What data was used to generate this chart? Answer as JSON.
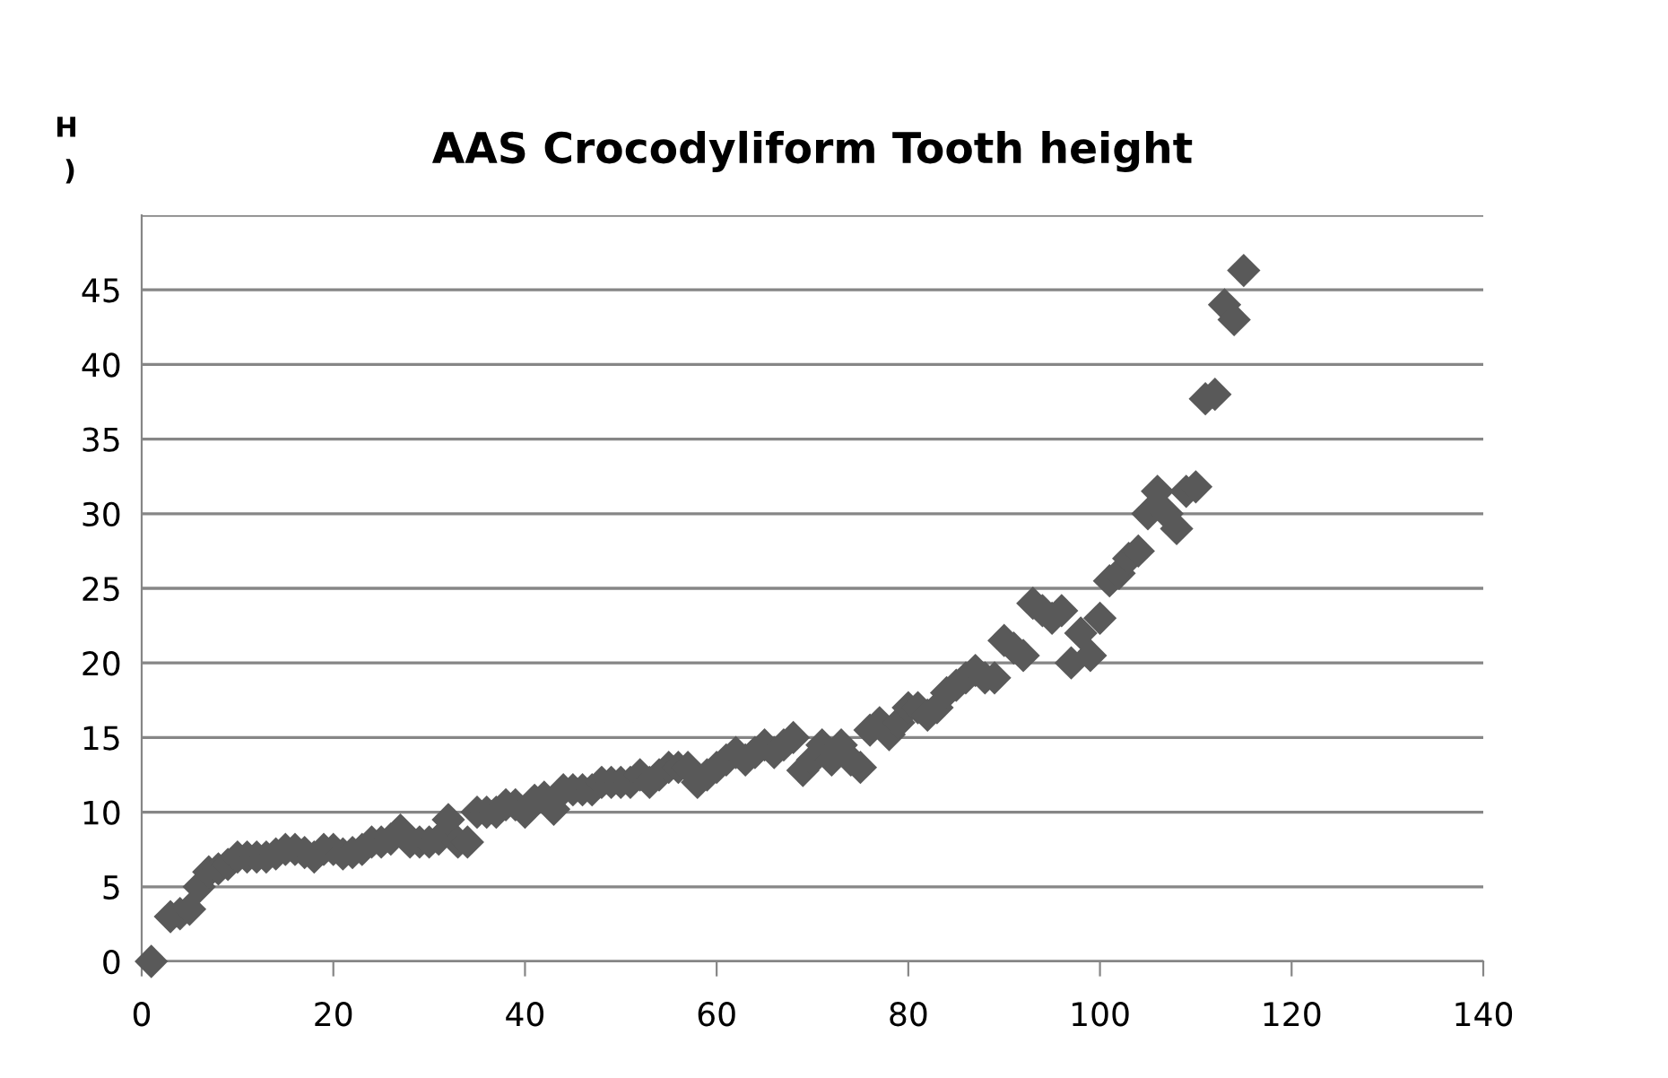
{
  "chart_data": {
    "type": "scatter",
    "title": "AAS Crocodyliform Tooth height",
    "annotations": [
      "H",
      ")"
    ],
    "x": [
      1,
      3,
      4,
      5,
      6,
      7,
      8,
      9,
      10,
      11,
      12,
      13,
      14,
      15,
      16,
      17,
      18,
      19,
      20,
      21,
      22,
      23,
      24,
      25,
      26,
      27,
      28,
      29,
      30,
      31,
      32,
      33,
      34,
      35,
      36,
      37,
      38,
      39,
      40,
      41,
      42,
      43,
      44,
      45,
      46,
      47,
      48,
      49,
      50,
      51,
      52,
      53,
      54,
      55,
      56,
      57,
      58,
      59,
      60,
      61,
      62,
      63,
      64,
      65,
      66,
      67,
      68,
      69,
      70,
      71,
      72,
      73,
      74,
      75,
      76,
      77,
      78,
      79,
      80,
      81,
      82,
      83,
      84,
      85,
      86,
      87,
      88,
      89,
      90,
      91,
      92,
      93,
      94,
      95,
      96,
      97,
      98,
      99,
      100,
      101,
      102,
      103,
      104,
      105,
      106,
      107,
      108,
      109,
      110,
      111,
      112,
      113,
      114,
      115
    ],
    "series": [
      {
        "color": "#595959",
        "values": [
          0,
          3,
          3.2,
          3.5,
          5,
          6,
          6.2,
          6.5,
          7,
          7,
          7,
          7,
          7.2,
          7.5,
          7.5,
          7.3,
          7,
          7.5,
          7.5,
          7.2,
          7.3,
          7.5,
          8,
          8,
          8.2,
          8.8,
          8,
          8,
          8,
          8.2,
          9.5,
          8,
          8,
          10,
          10,
          10,
          10.5,
          10.5,
          10,
          10.8,
          11,
          10.2,
          11.5,
          11.5,
          11.5,
          11.5,
          12,
          12,
          12,
          12,
          12.5,
          12,
          12.5,
          13,
          13,
          13,
          12,
          12.5,
          13,
          13.5,
          14,
          13.5,
          14,
          14.5,
          14,
          14.5,
          15,
          12.8,
          13.5,
          14.5,
          13.5,
          14.5,
          13.5,
          13,
          15.5,
          16,
          15.2,
          16,
          17,
          17,
          16.5,
          17,
          18,
          18.5,
          19,
          19.5,
          19,
          19,
          21.5,
          21,
          20.5,
          24,
          23.5,
          23,
          23.5,
          20,
          22,
          20.5,
          23,
          25.5,
          26,
          27,
          27.5,
          30,
          31.5,
          30,
          29,
          31.5,
          31.8,
          37.7,
          38,
          44,
          43,
          46.3
        ]
      }
    ],
    "xlim": [
      0,
      140
    ],
    "xticks": [
      0,
      20,
      40,
      60,
      80,
      100,
      120,
      140
    ],
    "ylim": [
      0,
      50
    ],
    "yticks": [
      0,
      5,
      10,
      15,
      20,
      25,
      30,
      35,
      40,
      45,
      {
        "value": 50,
        "label": null
      }
    ],
    "grid": "y",
    "marker": "diamond",
    "legend": false
  }
}
